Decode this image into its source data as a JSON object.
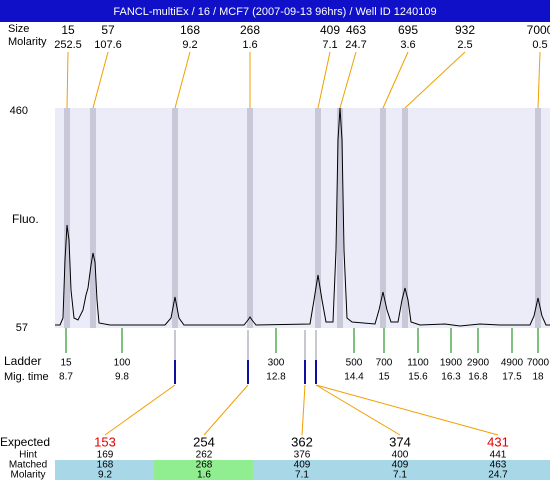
{
  "title": "FANCL-multiEx / 16 / MCF7 (2007-09-13 96hrs) / Well ID 1240109",
  "top": {
    "labels": [
      "Size",
      "Molarity"
    ],
    "peaks": [
      {
        "size": "15",
        "molarity": "252.5"
      },
      {
        "size": "57",
        "molarity": "107.6"
      },
      {
        "size": "168",
        "molarity": "9.2"
      },
      {
        "size": "268",
        "molarity": "1.6"
      },
      {
        "size": "409",
        "molarity": "7.1"
      },
      {
        "size": "463",
        "molarity": "24.7"
      },
      {
        "size": "695",
        "molarity": "3.6"
      },
      {
        "size": "932",
        "molarity": "2.5"
      },
      {
        "size": "7000",
        "molarity": "0.5"
      }
    ]
  },
  "plot": {
    "y_max": "460",
    "y_min": "57",
    "y_label": "Fluo."
  },
  "ladder": {
    "labels": [
      "Ladder",
      "Mig. time"
    ],
    "items": [
      {
        "size": "15",
        "time": "8.7"
      },
      {
        "size": "100",
        "time": "9.8"
      },
      {
        "size": "300",
        "time": "12.8"
      },
      {
        "size": "500",
        "time": "14.4"
      },
      {
        "size": "700",
        "time": "15"
      },
      {
        "size": "1100",
        "time": "15.6"
      },
      {
        "size": "1900",
        "time": "16.3"
      },
      {
        "size": "2900",
        "time": "16.8"
      },
      {
        "size": "4900",
        "time": "17.5"
      },
      {
        "size": "7000",
        "time": "18"
      }
    ]
  },
  "table": {
    "row_labels": [
      "Expected",
      "Hint",
      "Matched",
      "Molarity"
    ],
    "columns": [
      {
        "expected": "153",
        "hint": "169",
        "matched": "168",
        "molarity": "9.2"
      },
      {
        "expected": "254",
        "hint": "262",
        "matched": "268",
        "molarity": "1.6"
      },
      {
        "expected": "362",
        "hint": "376",
        "matched": "409",
        "molarity": "7.1"
      },
      {
        "expected": "374",
        "hint": "400",
        "matched": "409",
        "molarity": "7.1"
      },
      {
        "expected": "431",
        "hint": "441",
        "matched": "463",
        "molarity": "24.7"
      }
    ]
  }
}
